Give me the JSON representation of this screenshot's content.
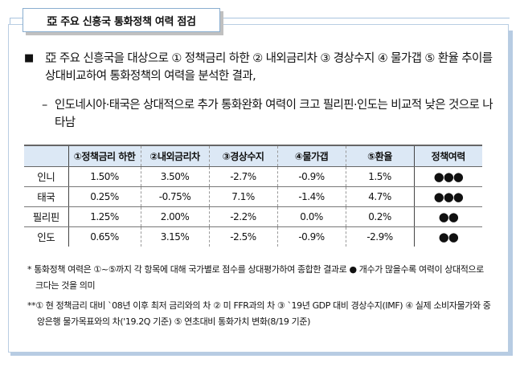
{
  "title": "亞 주요 신흥국 통화정책 여력 점검",
  "bullet": {
    "marker": "■",
    "text": "亞 주요 신흥국을 대상으로 ① 정책금리 하한 ② 내외금리차 ③ 경상수지 ④ 물가갭 ⑤ 환율 추이를 상대비교하여 통화정책의 여력을 분석한 결과,"
  },
  "sub_bullet": {
    "marker": "–",
    "text": "인도네시아·태국은 상대적으로 추가 통화완화 여력이 크고 필리핀·인도는 비교적 낮은 것으로 나타남"
  },
  "table": {
    "headers": [
      "",
      "①정책금리 하한",
      "②내외금리차",
      "③경상수지",
      "④물가갭",
      "⑤환율",
      "정책여력"
    ],
    "rows": [
      {
        "country": "인니",
        "policy_rate_floor": "1.50%",
        "rate_diff": "3.50%",
        "current_account": "-2.7%",
        "inflation_gap": "-0.9%",
        "fx": "1.5%",
        "capacity": "●●●"
      },
      {
        "country": "태국",
        "policy_rate_floor": "0.25%",
        "rate_diff": "-0.75%",
        "current_account": "7.1%",
        "inflation_gap": "-1.4%",
        "fx": "4.7%",
        "capacity": "●●●"
      },
      {
        "country": "필리핀",
        "policy_rate_floor": "1.25%",
        "rate_diff": "2.00%",
        "current_account": "-2.2%",
        "inflation_gap": "0.0%",
        "fx": "0.2%",
        "capacity": "●●"
      },
      {
        "country": "인도",
        "policy_rate_floor": "0.65%",
        "rate_diff": "3.15%",
        "current_account": "-2.5%",
        "inflation_gap": "-0.9%",
        "fx": "-2.9%",
        "capacity": "●●"
      }
    ]
  },
  "notes": {
    "note1": "* 통화정책 여력은 ①~⑤까지 각 항목에 대해 국가별로 점수를 상대평가하여 종합한 결과로 ● 개수가 많을수록 여력이 상대적으로 크다는 것을 의미",
    "note2": "**① 현 정책금리 대비 `08년 이후 최저 금리와의 차 ② 미 FFR과의 차 ③ `19년 GDP 대비 경상수지(IMF) ④ 실제 소비자물가와 중앙은행 물가목표와의 차('19.2Q 기준) ⑤ 연초대비 통화가치 변화(8/19 기준)"
  },
  "colors": {
    "header_bg": "#dce8f5",
    "frame_border": "#b9cde2",
    "shadow": "#b7cce3"
  }
}
